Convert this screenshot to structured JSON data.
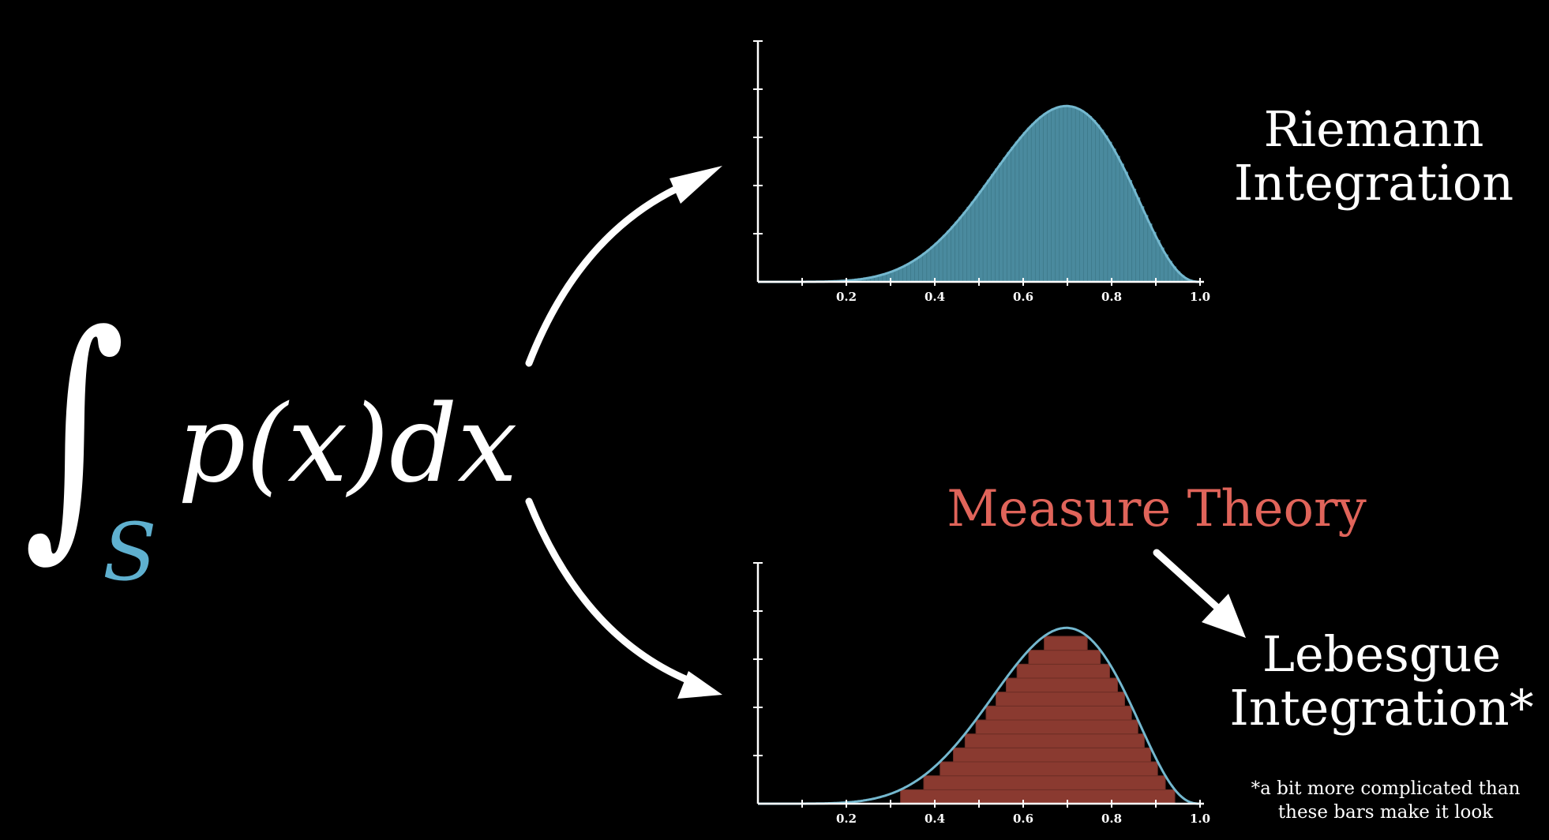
{
  "equation": {
    "integral_symbol": "∫",
    "subscript": "S",
    "integrand": "p(x)dx"
  },
  "labels": {
    "riemann_line1": "Riemann",
    "riemann_line2": "Integration",
    "measure_theory": "Measure Theory",
    "lebesgue_line1": "Lebesgue",
    "lebesgue_line2": "Integration*",
    "footnote_line1": "*a bit more complicated than",
    "footnote_line2": "these bars make it look"
  },
  "colors": {
    "background": "#000000",
    "text": "#ffffff",
    "subscript": "#5fb0cf",
    "curve": "#74b8cf",
    "riemann_fill": "#4a8a9e",
    "lebesgue_fill": "#8a3a30",
    "measure_theory": "#e0645a"
  },
  "chart_data": [
    {
      "type": "area",
      "title": "",
      "series": [
        {
          "name": "",
          "style": "riemann-vertical-bars"
        }
      ],
      "curve": {
        "kind": "bump",
        "peak_x": 0.7,
        "support": [
          0.2,
          1.0
        ]
      },
      "xlim": [
        0,
        1.0
      ],
      "x_tick_labels": [
        "0.2",
        "0.4",
        "0.6",
        "0.8",
        "1.0"
      ],
      "x_ticks": [
        0.1,
        0.2,
        0.3,
        0.4,
        0.5,
        0.6,
        0.7,
        0.8,
        0.9,
        1.0
      ],
      "y_tick_count": 5,
      "bar_count": 110
    },
    {
      "type": "area",
      "title": "",
      "series": [
        {
          "name": "",
          "style": "lebesgue-horizontal-bands"
        }
      ],
      "curve": {
        "kind": "bump",
        "peak_x": 0.7,
        "support": [
          0.2,
          1.0
        ]
      },
      "xlim": [
        0,
        1.0
      ],
      "x_tick_labels": [
        "0.2",
        "0.4",
        "0.6",
        "0.8",
        "1.0"
      ],
      "x_ticks": [
        0.1,
        0.2,
        0.3,
        0.4,
        0.5,
        0.6,
        0.7,
        0.8,
        0.9,
        1.0
      ],
      "y_tick_count": 5,
      "band_count": 12
    }
  ]
}
